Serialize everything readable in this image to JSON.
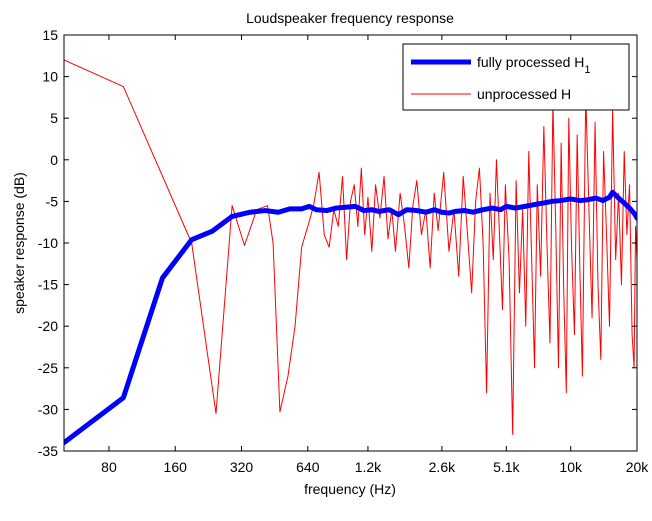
{
  "chart_data": {
    "type": "line",
    "title": "Loudspeaker frequency response",
    "xlabel": "frequency (Hz)",
    "ylabel": "speaker response (dB)",
    "x_scale": "log",
    "xlim": [
      50,
      20000
    ],
    "ylim": [
      -35,
      15
    ],
    "x_ticks": [
      80,
      160,
      320,
      640,
      1200,
      2600,
      5100,
      10000,
      20000
    ],
    "x_tick_labels": [
      "80",
      "160",
      "320",
      "640",
      "1.2k",
      "2.6k",
      "5.1k",
      "10k",
      "20k"
    ],
    "y_ticks": [
      15,
      10,
      5,
      0,
      -5,
      -10,
      -15,
      -20,
      -25,
      -30,
      -35
    ],
    "y_tick_labels": [
      "15",
      "10",
      "5",
      "0",
      "-5",
      "-10",
      "-15",
      "-20",
      "-25",
      "-30",
      "-35"
    ],
    "grid": false,
    "legend": {
      "placement": "top-right"
    },
    "series": [
      {
        "name": "fully processed H",
        "name_subscript": "1",
        "color": "#0000ff",
        "line_width": "thick",
        "points": [
          [
            50,
            -34
          ],
          [
            93,
            -28.6
          ],
          [
            140,
            -14.2
          ],
          [
            190,
            -9.6
          ],
          [
            235,
            -8.6
          ],
          [
            290,
            -6.8
          ],
          [
            350,
            -6.3
          ],
          [
            410,
            -6.1
          ],
          [
            470,
            -6.3
          ],
          [
            530,
            -5.9
          ],
          [
            600,
            -5.9
          ],
          [
            650,
            -5.6
          ],
          [
            700,
            -6.0
          ],
          [
            780,
            -6.1
          ],
          [
            860,
            -5.8
          ],
          [
            950,
            -5.7
          ],
          [
            1050,
            -5.6
          ],
          [
            1150,
            -6.1
          ],
          [
            1250,
            -6.0
          ],
          [
            1350,
            -6.2
          ],
          [
            1500,
            -6.0
          ],
          [
            1650,
            -6.6
          ],
          [
            1800,
            -6.0
          ],
          [
            2000,
            -6.1
          ],
          [
            2200,
            -6.3
          ],
          [
            2400,
            -6.0
          ],
          [
            2600,
            -6.3
          ],
          [
            2800,
            -6.4
          ],
          [
            3000,
            -6.2
          ],
          [
            3300,
            -6.1
          ],
          [
            3600,
            -6.3
          ],
          [
            4000,
            -6.0
          ],
          [
            4400,
            -5.8
          ],
          [
            4800,
            -6.0
          ],
          [
            5100,
            -5.6
          ],
          [
            5600,
            -5.8
          ],
          [
            6200,
            -5.6
          ],
          [
            6800,
            -5.4
          ],
          [
            7500,
            -5.2
          ],
          [
            8200,
            -5.0
          ],
          [
            9000,
            -4.9
          ],
          [
            10000,
            -4.7
          ],
          [
            11000,
            -4.9
          ],
          [
            12000,
            -4.8
          ],
          [
            13000,
            -4.6
          ],
          [
            14000,
            -4.9
          ],
          [
            15000,
            -4.5
          ],
          [
            15500,
            -3.9
          ],
          [
            16500,
            -4.6
          ],
          [
            17500,
            -5.2
          ],
          [
            18500,
            -5.8
          ],
          [
            19500,
            -6.5
          ],
          [
            20000,
            -7.0
          ]
        ]
      },
      {
        "name": "unprocessed H",
        "color": "#ff0000",
        "line_width": "thin",
        "points": [
          [
            50,
            12
          ],
          [
            93,
            8.8
          ],
          [
            190,
            -10
          ],
          [
            245,
            -30.5
          ],
          [
            290,
            -5.5
          ],
          [
            330,
            -10.3
          ],
          [
            375,
            -6.0
          ],
          [
            420,
            -5.5
          ],
          [
            445,
            -10.0
          ],
          [
            478,
            -30.3
          ],
          [
            520,
            -26.0
          ],
          [
            560,
            -20.0
          ],
          [
            600,
            -10.5
          ],
          [
            640,
            -8.0
          ],
          [
            680,
            -5.5
          ],
          [
            720,
            -1.5
          ],
          [
            760,
            -9.0
          ],
          [
            800,
            -10.5
          ],
          [
            840,
            -6.0
          ],
          [
            880,
            -8.0
          ],
          [
            920,
            -2.0
          ],
          [
            960,
            -12.0
          ],
          [
            1000,
            -5.0
          ],
          [
            1040,
            -3.0
          ],
          [
            1080,
            -8.0
          ],
          [
            1120,
            -1.0
          ],
          [
            1160,
            -9.0
          ],
          [
            1200,
            -4.5
          ],
          [
            1250,
            -11.0
          ],
          [
            1300,
            -3.0
          ],
          [
            1360,
            -7.0
          ],
          [
            1420,
            -2.0
          ],
          [
            1480,
            -9.5
          ],
          [
            1540,
            -6.0
          ],
          [
            1600,
            -11.0
          ],
          [
            1680,
            -4.0
          ],
          [
            1760,
            -8.0
          ],
          [
            1840,
            -13.0
          ],
          [
            1920,
            -5.5
          ],
          [
            2000,
            -2.5
          ],
          [
            2100,
            -9.0
          ],
          [
            2200,
            -6.0
          ],
          [
            2300,
            -13.0
          ],
          [
            2400,
            -4.0
          ],
          [
            2500,
            -8.5
          ],
          [
            2650,
            -1.5
          ],
          [
            2800,
            -11.0
          ],
          [
            2950,
            -6.0
          ],
          [
            3100,
            -14.0
          ],
          [
            3250,
            -2.0
          ],
          [
            3400,
            -9.0
          ],
          [
            3550,
            -16.0
          ],
          [
            3700,
            -5.0
          ],
          [
            3850,
            -1.0
          ],
          [
            4000,
            -10.0
          ],
          [
            4150,
            -28.0
          ],
          [
            4300,
            -4.0
          ],
          [
            4450,
            -12.0
          ],
          [
            4600,
            0.0
          ],
          [
            4750,
            -9.0
          ],
          [
            4900,
            -18.0
          ],
          [
            5050,
            -3.0
          ],
          [
            5250,
            -12.0
          ],
          [
            5450,
            -33.0
          ],
          [
            5650,
            -2.5
          ],
          [
            5850,
            -16.0
          ],
          [
            6050,
            -6.0
          ],
          [
            6250,
            -20.0
          ],
          [
            6450,
            1.0
          ],
          [
            6650,
            -12.0
          ],
          [
            6850,
            -25.0
          ],
          [
            7050,
            -3.0
          ],
          [
            7300,
            -14.0
          ],
          [
            7550,
            4.0
          ],
          [
            7800,
            -10.0
          ],
          [
            8050,
            -22.0
          ],
          [
            8300,
            7.0
          ],
          [
            8550,
            -8.0
          ],
          [
            8800,
            -25.0
          ],
          [
            9050,
            2.0
          ],
          [
            9300,
            -16.0
          ],
          [
            9550,
            -28.0
          ],
          [
            9800,
            5.0
          ],
          [
            10100,
            -11.0
          ],
          [
            10400,
            -21.0
          ],
          [
            10700,
            3.0
          ],
          [
            11000,
            -13.0
          ],
          [
            11300,
            -26.0
          ],
          [
            11700,
            8.0
          ],
          [
            12100,
            -6.0
          ],
          [
            12500,
            -19.0
          ],
          [
            12900,
            4.5
          ],
          [
            13300,
            -15.0
          ],
          [
            13700,
            -24.0
          ],
          [
            14100,
            1.0
          ],
          [
            14500,
            -8.0
          ],
          [
            15000,
            -20.0
          ],
          [
            15500,
            6.0
          ],
          [
            16000,
            -12.0
          ],
          [
            16500,
            -4.0
          ],
          [
            17000,
            -15.0
          ],
          [
            17500,
            1.0
          ],
          [
            18000,
            -9.0
          ],
          [
            18500,
            -3.0
          ],
          [
            19000,
            -21.0
          ],
          [
            19400,
            -25.0
          ],
          [
            19700,
            -8.0
          ],
          [
            20000,
            -12.0
          ]
        ]
      }
    ]
  }
}
